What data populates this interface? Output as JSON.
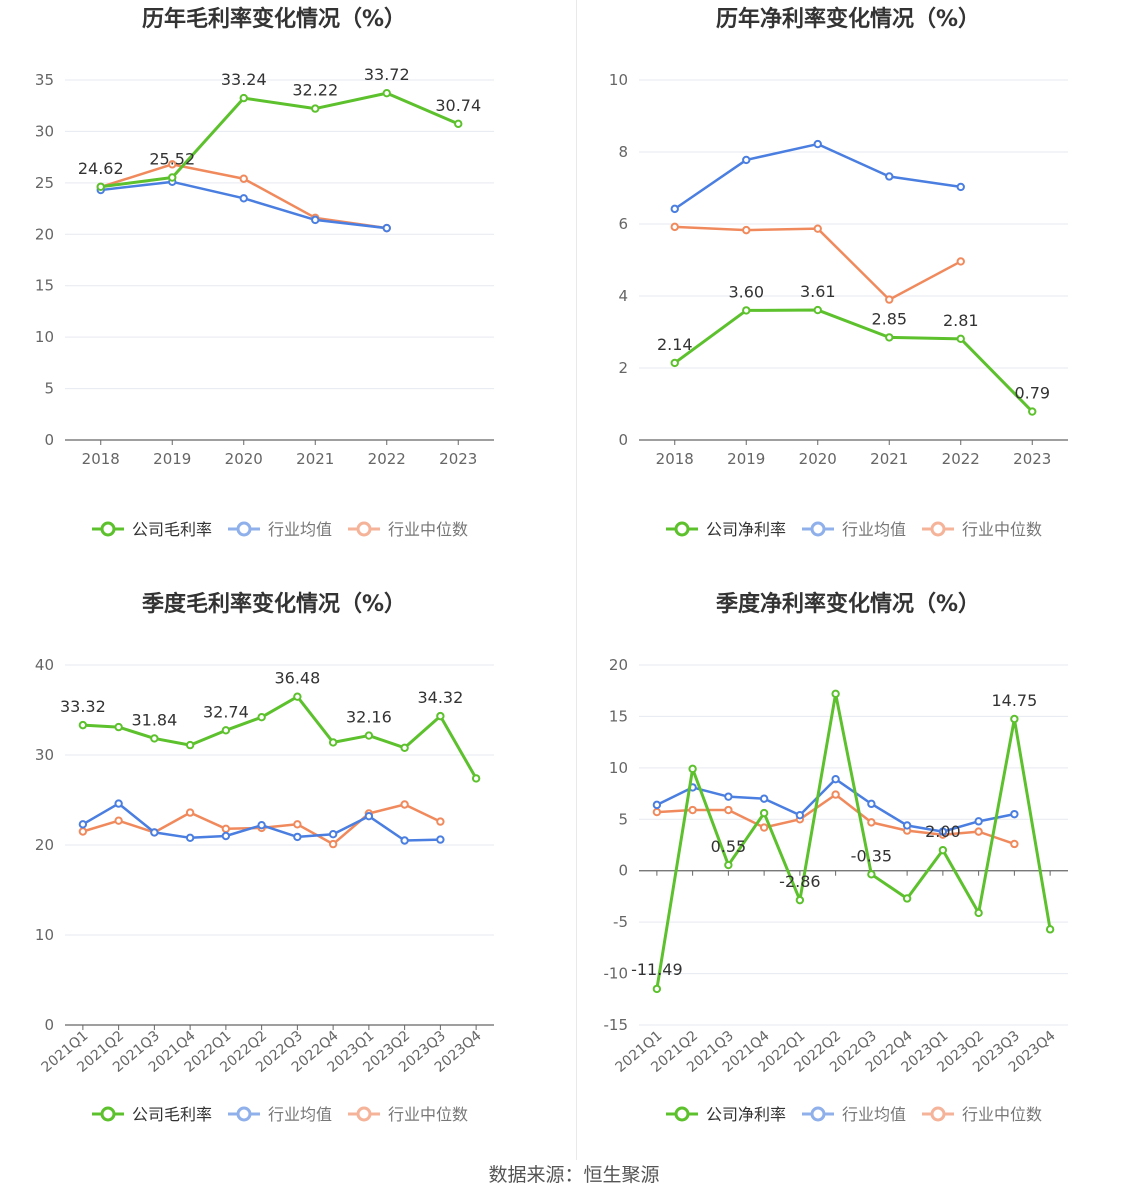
{
  "source": "数据来源：恒生聚源",
  "legend_labels": [
    "行业均值",
    "行业中位数"
  ],
  "colors": {
    "company": "#5cc12c",
    "avg": "#4a7ee0",
    "median": "#f08a5d"
  },
  "chart_data": [
    {
      "type": "line",
      "title": "历年毛利率变化情况（%）",
      "categories": [
        "2018",
        "2019",
        "2020",
        "2021",
        "2022",
        "2023"
      ],
      "ylim": [
        0,
        35
      ],
      "yticks": [
        0,
        5,
        10,
        15,
        20,
        25,
        30,
        35
      ],
      "rotate_labels": false,
      "series": [
        {
          "name": "公司毛利率",
          "values": [
            24.62,
            25.52,
            33.24,
            32.22,
            33.72,
            30.74
          ],
          "labels": [
            "24.62",
            "25.52",
            "33.24",
            "32.22",
            "33.72",
            "30.74"
          ]
        },
        {
          "name": "行业均值",
          "values": [
            24.3,
            25.1,
            23.5,
            21.4,
            20.6,
            null
          ]
        },
        {
          "name": "行业中位数",
          "values": [
            24.6,
            26.8,
            25.4,
            21.6,
            20.6,
            null
          ]
        }
      ]
    },
    {
      "type": "line",
      "title": "历年净利率变化情况（%）",
      "categories": [
        "2018",
        "2019",
        "2020",
        "2021",
        "2022",
        "2023"
      ],
      "ylim": [
        0,
        10
      ],
      "yticks": [
        0,
        2,
        4,
        6,
        8,
        10
      ],
      "rotate_labels": false,
      "series": [
        {
          "name": "公司净利率",
          "values": [
            2.14,
            3.6,
            3.61,
            2.85,
            2.81,
            0.79
          ],
          "labels": [
            "2.14",
            "3.60",
            "3.61",
            "2.85",
            "2.81",
            "0.79"
          ]
        },
        {
          "name": "行业均值",
          "values": [
            6.42,
            7.78,
            8.22,
            7.32,
            7.03,
            null
          ]
        },
        {
          "name": "行业中位数",
          "values": [
            5.92,
            5.83,
            5.87,
            3.9,
            4.96,
            null
          ]
        }
      ]
    },
    {
      "type": "line",
      "title": "季度毛利率变化情况（%）",
      "categories": [
        "2021Q1",
        "2021Q2",
        "2021Q3",
        "2021Q4",
        "2022Q1",
        "2022Q2",
        "2022Q3",
        "2022Q4",
        "2023Q1",
        "2023Q2",
        "2023Q3",
        "2023Q4"
      ],
      "ylim": [
        0,
        40
      ],
      "yticks": [
        0,
        10,
        20,
        30,
        40
      ],
      "rotate_labels": true,
      "series": [
        {
          "name": "公司毛利率",
          "values": [
            33.32,
            33.1,
            31.84,
            31.1,
            32.74,
            34.2,
            36.48,
            31.4,
            32.16,
            30.8,
            34.32,
            27.4
          ],
          "labels": [
            "33.32",
            null,
            "31.84",
            null,
            "32.74",
            null,
            "36.48",
            null,
            "32.16",
            null,
            "34.32",
            null
          ]
        },
        {
          "name": "行业均值",
          "values": [
            22.3,
            24.6,
            21.4,
            20.8,
            21.0,
            22.2,
            20.9,
            21.2,
            23.2,
            20.5,
            20.6,
            null
          ]
        },
        {
          "name": "行业中位数",
          "values": [
            21.5,
            22.7,
            21.4,
            23.6,
            21.8,
            21.9,
            22.3,
            20.1,
            23.5,
            24.5,
            22.6,
            null
          ]
        }
      ]
    },
    {
      "type": "line",
      "title": "季度净利率变化情况（%）",
      "categories": [
        "2021Q1",
        "2021Q2",
        "2021Q3",
        "2021Q4",
        "2022Q1",
        "2022Q2",
        "2022Q3",
        "2022Q4",
        "2023Q1",
        "2023Q2",
        "2023Q3",
        "2023Q4"
      ],
      "ylim": [
        -15,
        20
      ],
      "yticks": [
        -15,
        -10,
        -5,
        0,
        5,
        10,
        15,
        20
      ],
      "rotate_labels": true,
      "series": [
        {
          "name": "公司净利率",
          "values": [
            -11.49,
            9.9,
            0.55,
            5.6,
            -2.86,
            17.2,
            -0.35,
            -2.7,
            2.0,
            -4.1,
            14.75,
            -5.7
          ],
          "labels": [
            "-11.49",
            null,
            "0.55",
            null,
            "-2.86",
            null,
            "-0.35",
            null,
            "2.00",
            null,
            "14.75",
            null
          ]
        },
        {
          "name": "行业均值",
          "values": [
            6.4,
            8.1,
            7.2,
            7.0,
            5.4,
            8.9,
            6.5,
            4.4,
            3.8,
            4.8,
            5.5,
            null
          ]
        },
        {
          "name": "行业中位数",
          "values": [
            5.7,
            5.9,
            5.9,
            4.2,
            5.0,
            7.4,
            4.7,
            3.9,
            3.5,
            3.8,
            2.6,
            null
          ]
        }
      ]
    }
  ]
}
